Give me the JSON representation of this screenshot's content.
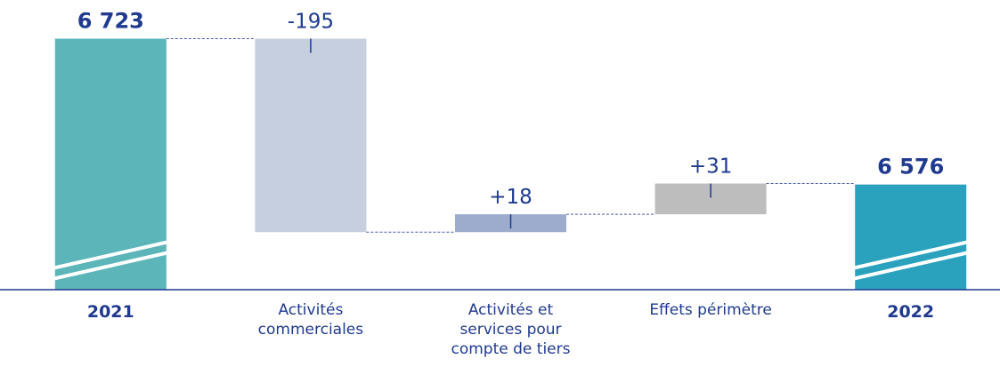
{
  "chart_data": {
    "type": "waterfall",
    "categories": [
      "2021",
      "Activités commerciales",
      "Activités et services pour compte de tiers",
      "Effets périmètre",
      "2022"
    ],
    "values": [
      6723,
      -195,
      18,
      31,
      6576
    ],
    "value_labels": [
      "6 723",
      "-195",
      "+18",
      "+31",
      "6 576"
    ],
    "totals": [
      true,
      false,
      false,
      false,
      true
    ],
    "colors": [
      "#5bb5b9",
      "#c5cfe0",
      "#9daccd",
      "#bdbdbd",
      "#2aa2bd"
    ],
    "ylim": [
      6470,
      6762
    ]
  }
}
